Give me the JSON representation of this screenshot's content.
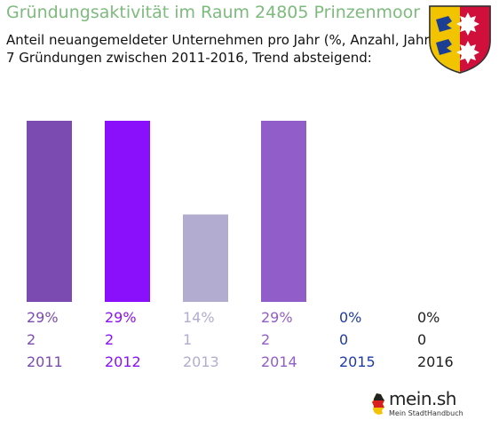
{
  "header": {
    "title": "Gründungsaktivität im Raum 24805 Prinzenmoor",
    "subtitle1": "Anteil neuangemeldeter Unternehmen pro Jahr (%, Anzahl, Jahr)",
    "subtitle2": "7 Gründungen zwischen 2011-2016, Trend absteigend:"
  },
  "logo": {
    "name": "mein.sh",
    "tagline": "Mein StadtHandbuch",
    "icon": "germany-map-icon"
  },
  "coat_of_arms": {
    "icon": "schleswig-holstein-coat-of-arms-icon"
  },
  "chart_data": {
    "type": "bar",
    "categories": [
      "2011",
      "2012",
      "2013",
      "2014",
      "2015",
      "2016"
    ],
    "values": [
      29,
      29,
      14,
      29,
      0,
      0
    ],
    "counts": [
      2,
      2,
      1,
      2,
      0,
      0
    ],
    "percent_labels": [
      "29%",
      "29%",
      "14%",
      "29%",
      "0%",
      "0%"
    ],
    "count_labels": [
      "2",
      "2",
      "1",
      "2",
      "0",
      "0"
    ],
    "colors": [
      "#7b4bb2",
      "#8a10fb",
      "#b1acd0",
      "#915ec9",
      "#1f3ba5",
      "#202020"
    ],
    "ylim": [
      0,
      29
    ],
    "grid": false,
    "legend": "none"
  }
}
